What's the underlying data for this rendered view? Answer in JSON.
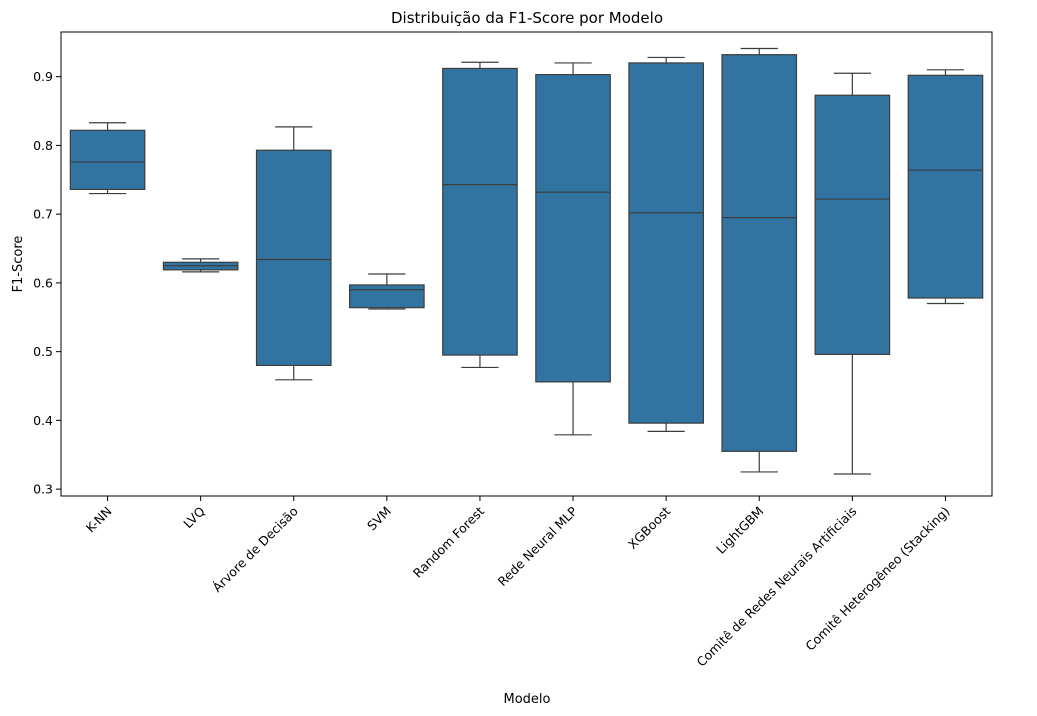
{
  "chart_data": {
    "type": "box",
    "title": "Distribuição da F1-Score por Modelo",
    "xlabel": "Modelo",
    "ylabel": "F1-Score",
    "ylim": [
      0.29,
      0.965
    ],
    "yticks": [
      "0.3",
      "0.4",
      "0.5",
      "0.6",
      "0.7",
      "0.8",
      "0.9"
    ],
    "grid": false,
    "box_color": "#3274a1",
    "line_color": "#3d3d3d",
    "categories": [
      "K-NN",
      "LVQ",
      "Árvore de Decisão",
      "SVM",
      "Random Forest",
      "Rede Neural MLP",
      "XGBoost",
      "LightGBM",
      "Comitê de Redes Neurais Artificiais",
      "Comitê Heterogêneo (Stacking)"
    ],
    "boxes": [
      {
        "whisker_low": 0.73,
        "q1": 0.736,
        "median": 0.776,
        "q3": 0.822,
        "whisker_high": 0.833
      },
      {
        "whisker_low": 0.616,
        "q1": 0.619,
        "median": 0.625,
        "q3": 0.63,
        "whisker_high": 0.635
      },
      {
        "whisker_low": 0.459,
        "q1": 0.48,
        "median": 0.634,
        "q3": 0.793,
        "whisker_high": 0.827
      },
      {
        "whisker_low": 0.562,
        "q1": 0.564,
        "median": 0.59,
        "q3": 0.597,
        "whisker_high": 0.613
      },
      {
        "whisker_low": 0.477,
        "q1": 0.495,
        "median": 0.743,
        "q3": 0.912,
        "whisker_high": 0.921
      },
      {
        "whisker_low": 0.379,
        "q1": 0.456,
        "median": 0.732,
        "q3": 0.903,
        "whisker_high": 0.92
      },
      {
        "whisker_low": 0.384,
        "q1": 0.396,
        "median": 0.702,
        "q3": 0.92,
        "whisker_high": 0.928
      },
      {
        "whisker_low": 0.325,
        "q1": 0.355,
        "median": 0.695,
        "q3": 0.932,
        "whisker_high": 0.941
      },
      {
        "whisker_low": 0.322,
        "q1": 0.496,
        "median": 0.722,
        "q3": 0.873,
        "whisker_high": 0.905
      },
      {
        "whisker_low": 0.57,
        "q1": 0.578,
        "median": 0.764,
        "q3": 0.902,
        "whisker_high": 0.91
      }
    ]
  }
}
